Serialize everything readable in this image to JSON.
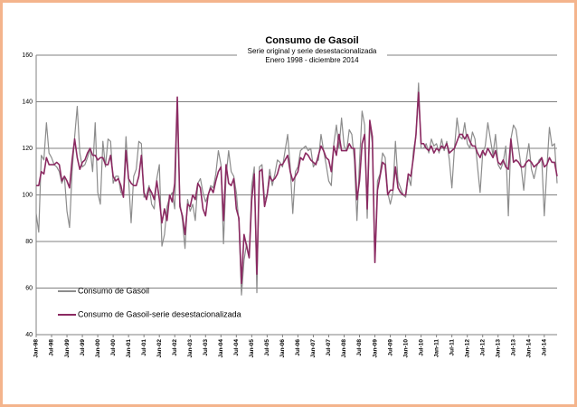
{
  "chart_data": {
    "type": "line",
    "title": "Consumo de Gasoil",
    "subtitle": [
      "Serie original y serie desestacionalizada",
      "Enero 1998 - diciembre 2014"
    ],
    "categories": [
      "Jan-98",
      null,
      null,
      null,
      null,
      null,
      "Jul-98",
      null,
      null,
      null,
      null,
      null,
      "Jan-99",
      null,
      null,
      null,
      null,
      null,
      "Jul-99",
      null,
      null,
      null,
      null,
      null,
      "Jan-00",
      null,
      null,
      null,
      null,
      null,
      "Jul-00",
      null,
      null,
      null,
      null,
      null,
      "Jan-01",
      null,
      null,
      null,
      null,
      null,
      "Jul-01",
      null,
      null,
      null,
      null,
      null,
      "Jan-02",
      null,
      null,
      null,
      null,
      null,
      "Jul-02",
      null,
      null,
      null,
      null,
      null,
      "Jan-03",
      null,
      null,
      null,
      null,
      null,
      "Jul-03",
      null,
      null,
      null,
      null,
      null,
      "Jan-04",
      null,
      null,
      null,
      null,
      null,
      "Jul-04",
      null,
      null,
      null,
      null,
      null,
      "Jan-05",
      null,
      null,
      null,
      null,
      null,
      "Jul-05",
      null,
      null,
      null,
      null,
      null,
      "Jan-06",
      null,
      null,
      null,
      null,
      null,
      "Jul-06",
      null,
      null,
      null,
      null,
      null,
      "Jan-07",
      null,
      null,
      null,
      null,
      null,
      "Jul-07",
      null,
      null,
      null,
      null,
      null,
      "Jan-08",
      null,
      null,
      null,
      null,
      null,
      "Jul-08",
      null,
      null,
      null,
      null,
      null,
      "Jan-09",
      null,
      null,
      null,
      null,
      null,
      "Jul-09",
      null,
      null,
      null,
      null,
      null,
      "Jan-10",
      null,
      null,
      null,
      null,
      null,
      "Jul-10",
      null,
      null,
      null,
      null,
      null,
      "Jan-11",
      null,
      null,
      null,
      null,
      null,
      "Jul-11",
      null,
      null,
      null,
      null,
      null,
      "Jan-12",
      null,
      null,
      null,
      null,
      null,
      "Jul-12",
      null,
      null,
      null,
      null,
      null,
      "Jan-13",
      null,
      null,
      null,
      null,
      null,
      "Jul-13",
      null,
      null,
      null,
      null,
      null,
      "Jan-14",
      null,
      null,
      null,
      null,
      null,
      "Jul-14",
      null,
      null,
      null,
      null,
      null
    ],
    "series": [
      {
        "name": "Consumo de Gasoil",
        "color": "#8c8c8c",
        "values": [
          92,
          84,
          117,
          115,
          131,
          118,
          116,
          113,
          112,
          110,
          105,
          108,
          93,
          86,
          110,
          125,
          138,
          118,
          112,
          113,
          116,
          120,
          110,
          131,
          101,
          96,
          123,
          112,
          124,
          123,
          105,
          108,
          108,
          101,
          100,
          125,
          107,
          88,
          108,
          111,
          123,
          122,
          99,
          100,
          104,
          96,
          94,
          107,
          113,
          78,
          83,
          95,
          99,
          101,
          94,
          141,
          97,
          89,
          77,
          98,
          93,
          96,
          89,
          105,
          107,
          101,
          97,
          100,
          104,
          103,
          109,
          119,
          113,
          79,
          108,
          119,
          110,
          108,
          101,
          88,
          57,
          72,
          79,
          73,
          104,
          112,
          58,
          112,
          113,
          98,
          100,
          111,
          104,
          109,
          115,
          114,
          112,
          119,
          126,
          112,
          92,
          110,
          112,
          119,
          120,
          121,
          119,
          120,
          112,
          114,
          115,
          126,
          119,
          113,
          106,
          104,
          122,
          130,
          120,
          133,
          121,
          119,
          128,
          126,
          115,
          89,
          114,
          136,
          130,
          90,
          131,
          122,
          71,
          106,
          109,
          118,
          116,
          101,
          96,
          101,
          123,
          106,
          103,
          100,
          99,
          108,
          104,
          119,
          125,
          148,
          120,
          120,
          122,
          118,
          124,
          121,
          122,
          118,
          124,
          119,
          123,
          115,
          103,
          120,
          133,
          125,
          124,
          131,
          122,
          120,
          127,
          124,
          112,
          101,
          118,
          121,
          131,
          124,
          117,
          126,
          113,
          111,
          114,
          121,
          91,
          124,
          130,
          128,
          120,
          112,
          102,
          115,
          122,
          111,
          107,
          112,
          115,
          116,
          91,
          111,
          129,
          121,
          122,
          105
        ]
      },
      {
        "name": "Consumo de Gasoil-serie desestacionalizada",
        "color": "#8b2a62",
        "values": [
          104,
          104,
          110,
          109,
          116,
          113,
          113,
          113,
          114,
          113,
          106,
          108,
          106,
          103,
          115,
          124,
          116,
          111,
          114,
          115,
          118,
          120,
          117,
          117,
          115,
          116,
          116,
          113,
          113,
          117,
          108,
          106,
          107,
          104,
          99,
          119,
          107,
          105,
          104,
          104,
          108,
          117,
          101,
          98,
          103,
          101,
          98,
          106,
          98,
          88,
          94,
          89,
          100,
          97,
          105,
          142,
          95,
          91,
          83,
          96,
          95,
          100,
          98,
          105,
          103,
          94,
          91,
          100,
          103,
          101,
          106,
          110,
          112,
          89,
          113,
          105,
          104,
          107,
          94,
          90,
          62,
          83,
          78,
          73,
          98,
          109,
          66,
          110,
          111,
          95,
          100,
          108,
          106,
          107,
          109,
          113,
          113,
          115,
          117,
          110,
          106,
          108,
          110,
          116,
          115,
          118,
          117,
          115,
          114,
          113,
          117,
          121,
          119,
          116,
          115,
          110,
          121,
          117,
          126,
          119,
          119,
          119,
          122,
          120,
          120,
          98,
          106,
          122,
          126,
          94,
          132,
          125,
          71,
          102,
          108,
          114,
          113,
          100,
          102,
          102,
          112,
          103,
          101,
          100,
          100,
          109,
          108,
          116,
          126,
          144,
          122,
          122,
          120,
          119,
          121,
          118,
          120,
          119,
          121,
          120,
          122,
          118,
          119,
          120,
          123,
          126,
          126,
          124,
          126,
          123,
          121,
          121,
          118,
          116,
          119,
          117,
          120,
          118,
          116,
          119,
          114,
          113,
          115,
          112,
          111,
          124,
          114,
          115,
          114,
          112,
          112,
          114,
          115,
          114,
          112,
          113,
          114,
          116,
          112,
          113,
          116,
          114,
          114,
          108
        ]
      }
    ],
    "ylim": [
      40,
      160
    ],
    "yticks": [
      40,
      60,
      80,
      100,
      120,
      140,
      160
    ],
    "grid": true
  }
}
